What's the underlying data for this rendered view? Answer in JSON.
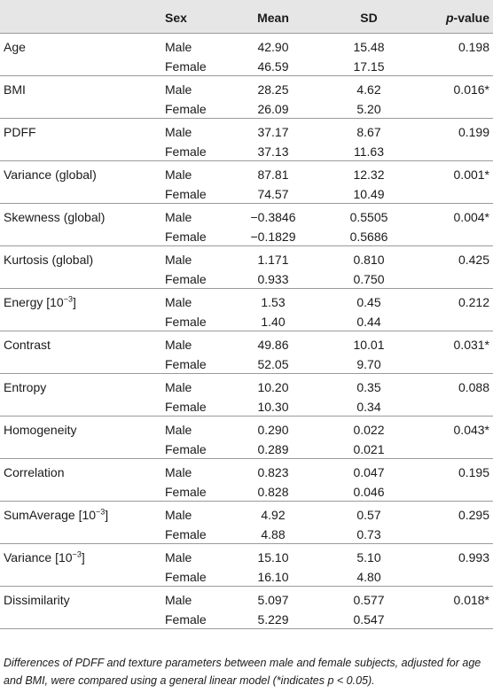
{
  "table": {
    "headers": {
      "param": "",
      "sex": "Sex",
      "mean": "Mean",
      "sd": "SD",
      "p_italic": "p",
      "p_rest": "-value"
    },
    "groups": [
      {
        "param": "Age",
        "male": {
          "sex": "Male",
          "mean": "42.90",
          "sd": "15.48"
        },
        "female": {
          "sex": "Female",
          "mean": "46.59",
          "sd": "17.15"
        },
        "p": "0.198"
      },
      {
        "param": "BMI",
        "male": {
          "sex": "Male",
          "mean": "28.25",
          "sd": "4.62"
        },
        "female": {
          "sex": "Female",
          "mean": "26.09",
          "sd": "5.20"
        },
        "p": "0.016*"
      },
      {
        "param": "PDFF",
        "male": {
          "sex": "Male",
          "mean": "37.17",
          "sd": "8.67"
        },
        "female": {
          "sex": "Female",
          "mean": "37.13",
          "sd": "11.63"
        },
        "p": "0.199"
      },
      {
        "param": "Variance (global)",
        "male": {
          "sex": "Male",
          "mean": "87.81",
          "sd": "12.32"
        },
        "female": {
          "sex": "Female",
          "mean": "74.57",
          "sd": "10.49"
        },
        "p": "0.001*"
      },
      {
        "param": "Skewness (global)",
        "male": {
          "sex": "Male",
          "mean": "−0.3846",
          "sd": "0.5505"
        },
        "female": {
          "sex": "Female",
          "mean": "−0.1829",
          "sd": "0.5686"
        },
        "p": "0.004*"
      },
      {
        "param": "Kurtosis (global)",
        "male": {
          "sex": "Male",
          "mean": "1.171",
          "sd": "0.810"
        },
        "female": {
          "sex": "Female",
          "mean": "0.933",
          "sd": "0.750"
        },
        "p": "0.425"
      },
      {
        "param": "Energy [10",
        "param_sup": "−3",
        "param_end": "]",
        "male": {
          "sex": "Male",
          "mean": "1.53",
          "sd": "0.45"
        },
        "female": {
          "sex": "Female",
          "mean": "1.40",
          "sd": "0.44"
        },
        "p": "0.212"
      },
      {
        "param": "Contrast",
        "male": {
          "sex": "Male",
          "mean": "49.86",
          "sd": "10.01"
        },
        "female": {
          "sex": "Female",
          "mean": "52.05",
          "sd": "9.70"
        },
        "p": "0.031*"
      },
      {
        "param": "Entropy",
        "male": {
          "sex": "Male",
          "mean": "10.20",
          "sd": "0.35"
        },
        "female": {
          "sex": "Female",
          "mean": "10.30",
          "sd": "0.34"
        },
        "p": "0.088"
      },
      {
        "param": "Homogeneity",
        "male": {
          "sex": "Male",
          "mean": "0.290",
          "sd": "0.022"
        },
        "female": {
          "sex": "Female",
          "mean": "0.289",
          "sd": "0.021"
        },
        "p": "0.043*"
      },
      {
        "param": "Correlation",
        "male": {
          "sex": "Male",
          "mean": "0.823",
          "sd": "0.047"
        },
        "female": {
          "sex": "Female",
          "mean": "0.828",
          "sd": "0.046"
        },
        "p": "0.195"
      },
      {
        "param": "SumAverage [10",
        "param_sup": "−3",
        "param_end": "]",
        "male": {
          "sex": "Male",
          "mean": "4.92",
          "sd": "0.57"
        },
        "female": {
          "sex": "Female",
          "mean": "4.88",
          "sd": "0.73"
        },
        "p": "0.295"
      },
      {
        "param": "Variance [10",
        "param_sup": "−3",
        "param_end": "]",
        "male": {
          "sex": "Male",
          "mean": "15.10",
          "sd": "5.10"
        },
        "female": {
          "sex": "Female",
          "mean": "16.10",
          "sd": "4.80"
        },
        "p": "0.993"
      },
      {
        "param": "Dissimilarity",
        "male": {
          "sex": "Male",
          "mean": "5.097",
          "sd": "0.577"
        },
        "female": {
          "sex": "Female",
          "mean": "5.229",
          "sd": "0.547"
        },
        "p": "0.018*"
      }
    ]
  },
  "footnote": "Differences of PDFF and texture parameters between male and female subjects, adjusted for age and BMI, were compared using a general linear model (*indicates p < 0.05)."
}
